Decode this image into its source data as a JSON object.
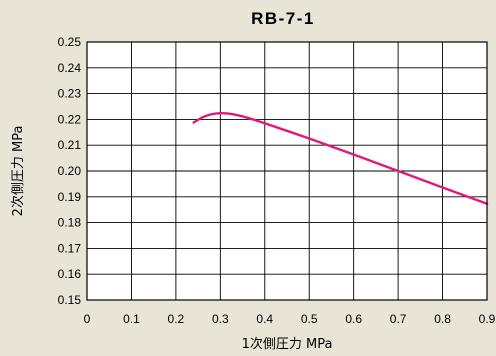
{
  "chart_data": {
    "type": "line",
    "title": "RB-7-1",
    "xlabel": "1次側圧力 MPa",
    "ylabel": "2次側圧力 MPa",
    "xlim": [
      0,
      0.9
    ],
    "ylim": [
      0.15,
      0.25
    ],
    "x_ticks": [
      "0",
      "0.1",
      "0.2",
      "0.3",
      "0.4",
      "0.5",
      "0.6",
      "0.7",
      "0.8",
      "0.9"
    ],
    "y_ticks": [
      "0.15",
      "0.16",
      "0.17",
      "0.18",
      "0.19",
      "0.20",
      "0.21",
      "0.22",
      "0.23",
      "0.24",
      "0.25"
    ],
    "grid": true,
    "series": [
      {
        "color": "#e0197d",
        "points": [
          [
            0.24,
            0.2188
          ],
          [
            0.26,
            0.2208
          ],
          [
            0.28,
            0.222
          ],
          [
            0.3,
            0.2224
          ],
          [
            0.32,
            0.2222
          ],
          [
            0.34,
            0.2216
          ],
          [
            0.36,
            0.2207
          ],
          [
            0.4,
            0.2185
          ],
          [
            0.5,
            0.2126
          ],
          [
            0.6,
            0.2064
          ],
          [
            0.7,
            0.2
          ],
          [
            0.8,
            0.1936
          ],
          [
            0.9,
            0.1873
          ]
        ]
      }
    ]
  }
}
